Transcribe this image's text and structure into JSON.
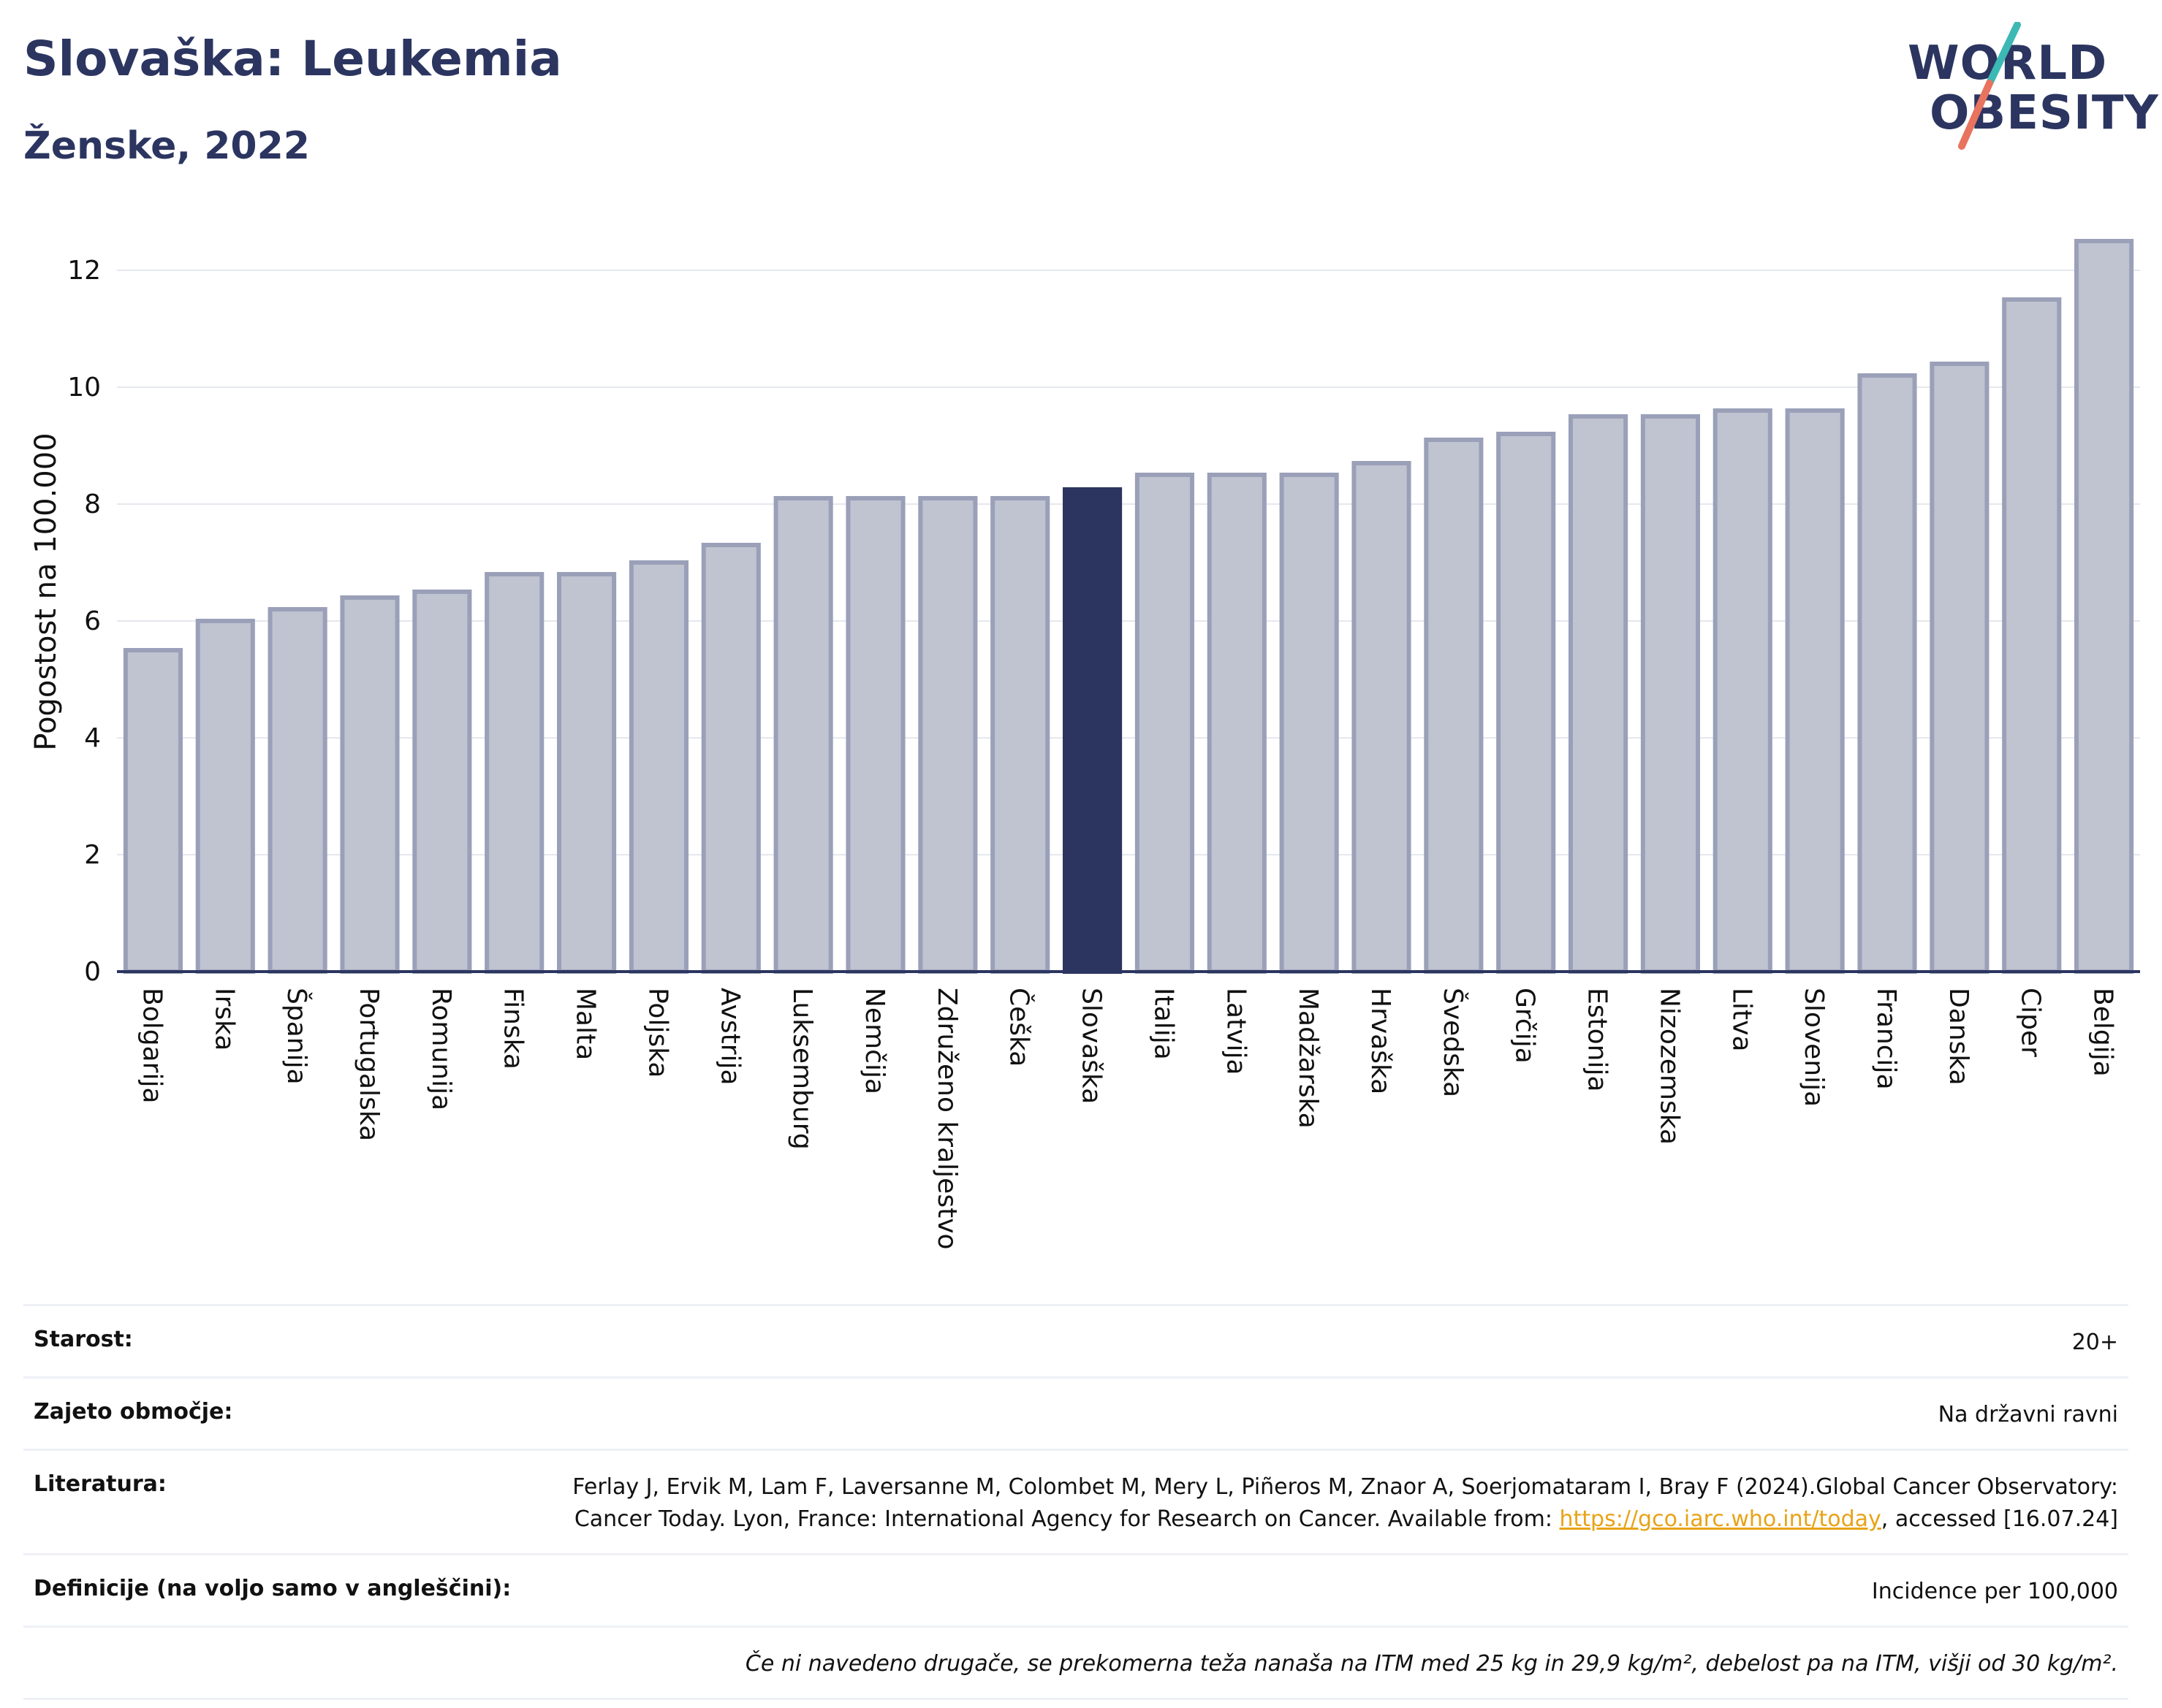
{
  "header": {
    "title": "Slovaška: Leukemia",
    "subtitle": "Ženske, 2022",
    "logo_line1": "WORLD",
    "logo_line2": "OBESITY"
  },
  "colors": {
    "bar": "#c0c3d0",
    "bar_border": "#9aa0b8",
    "highlight": "#2b3560",
    "grid": "#e6e8ef",
    "axis": "#2b3560",
    "logo_teal": "#3cb9b5",
    "logo_coral": "#e8735f"
  },
  "chart_data": {
    "type": "bar",
    "title": "",
    "xlabel": "",
    "ylabel": "Pogostost na 100.000",
    "ylim": [
      0,
      13
    ],
    "yticks": [
      0,
      2,
      4,
      6,
      8,
      10,
      12
    ],
    "grid": true,
    "highlight_category": "Slovaška",
    "categories": [
      "Bolgarija",
      "Irska",
      "Španija",
      "Portugalska",
      "Romunija",
      "Finska",
      "Malta",
      "Poljska",
      "Avstrija",
      "Luksemburg",
      "Nemčija",
      "Združeno kraljestvo",
      "Češka",
      "Slovaška",
      "Italija",
      "Latvija",
      "Madžarska",
      "Hrvaška",
      "Švedska",
      "Grčija",
      "Estonija",
      "Nizozemska",
      "Litva",
      "Slovenija",
      "Francija",
      "Danska",
      "Ciper",
      "Belgija"
    ],
    "values": [
      5.5,
      6.0,
      6.2,
      6.4,
      6.5,
      6.8,
      6.8,
      7.0,
      7.3,
      8.1,
      8.1,
      8.1,
      8.1,
      8.25,
      8.5,
      8.5,
      8.5,
      8.7,
      9.1,
      9.2,
      9.5,
      9.5,
      9.6,
      9.6,
      10.2,
      10.4,
      11.5,
      12.5
    ]
  },
  "meta": {
    "age_label": "Starost:",
    "age_value": "20+",
    "coverage_label": "Zajeto območje:",
    "coverage_value": "Na državni ravni",
    "literature_label": "Literatura:",
    "literature_text1": "Ferlay J, Ervik M, Lam F, Laversanne M, Colombet M, Mery L, Piñeros M, Znaor A, Soerjomataram I, Bray F (2024).Global Cancer Observatory: Cancer Today. Lyon, France: International Agency for Research on Cancer. Available from: ",
    "literature_link": "https://gco.iarc.who.int/today",
    "literature_text2": ", accessed [16.07.24]",
    "definitions_label": "Definicije (na voljo samo v angleščini):",
    "definitions_value": "Incidence per 100,000",
    "note": "Če ni navedeno drugače, se prekomerna teža nanaša na ITM med 25 kg in 29,9 kg/m², debelost pa na ITM, višji od 30 kg/m²."
  }
}
